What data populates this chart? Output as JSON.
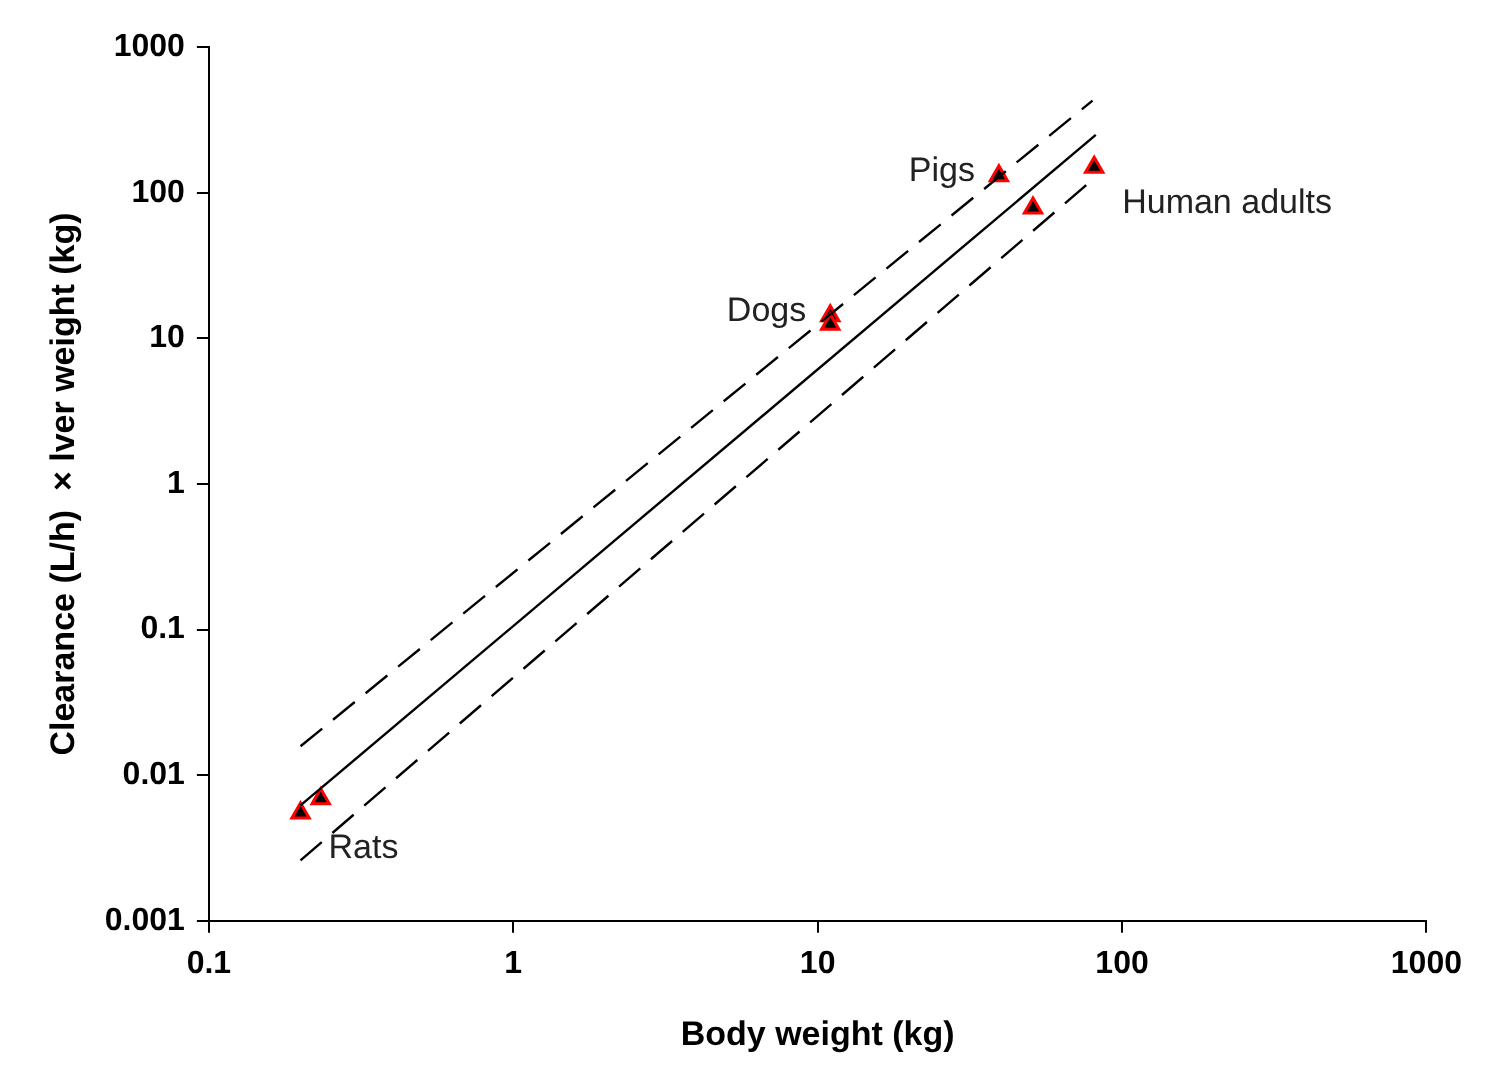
{
  "chart_data": {
    "type": "scatter",
    "xlabel": "Body weight (kg)",
    "ylabel": "Clearance (L/h)  × lver weight (kg)",
    "log": "xy",
    "grid": false,
    "legend": false,
    "marker": "triangle",
    "xlim": [
      0.1,
      1000
    ],
    "xticks": [
      0.1,
      1,
      10,
      100,
      1000
    ],
    "ylim": [
      0.001,
      1000
    ],
    "yticks": [
      0.001,
      0.01,
      0.1,
      1,
      10,
      100,
      1000
    ],
    "series": [
      {
        "type": "line",
        "x": [
          0.2,
          82
        ],
        "values": [
          0.0062,
          250
        ],
        "color": "#000000",
        "line_style": "solid",
        "marker": "none"
      },
      {
        "type": "line",
        "x": [
          0.2,
          80
        ],
        "values": [
          0.0158,
          430
        ],
        "color": "#000000",
        "line_style": "dashed",
        "marker": "none"
      },
      {
        "type": "line",
        "x": [
          0.2,
          80
        ],
        "values": [
          0.0026,
          123
        ],
        "color": "#000000",
        "line_style": "dashed",
        "marker": "none"
      },
      {
        "type": "scatter",
        "x": [
          0.2,
          0.233,
          11,
          11,
          39.4,
          51,
          81
        ],
        "values": [
          0.0055,
          0.0069,
          14.3,
          12.5,
          131,
          78.5,
          150
        ],
        "color": "#000000"
      }
    ],
    "annotations": [
      {
        "text": "Pigs",
        "x": 39.4,
        "y": 131
      },
      {
        "text": "Dogs",
        "x": 11,
        "y": 14.3
      },
      {
        "text": "Human adults",
        "x": 81,
        "y": 150
      },
      {
        "text": "Rats",
        "x": 0.2,
        "y": 0.0055
      }
    ]
  }
}
